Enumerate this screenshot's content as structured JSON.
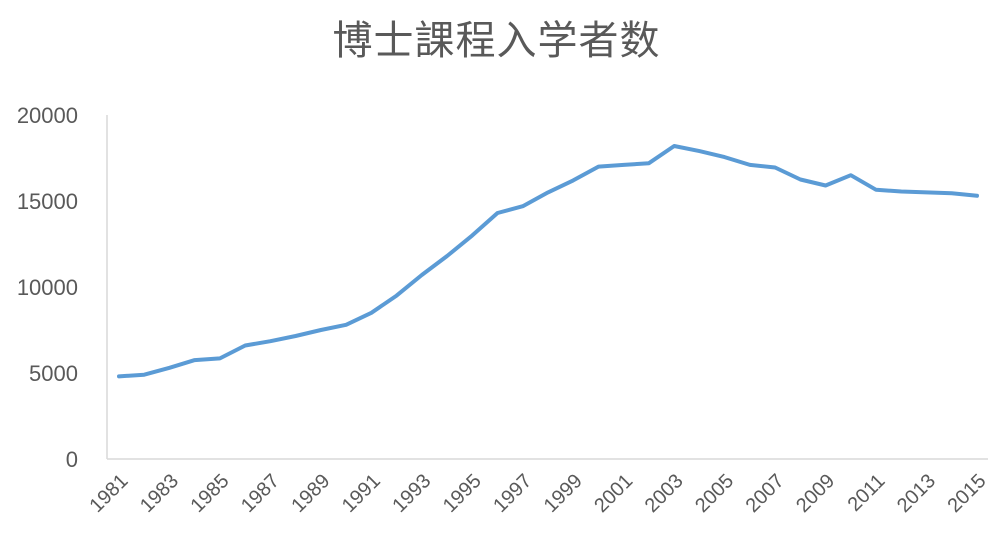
{
  "chart_data": {
    "type": "line",
    "title": "博士課程入学者数",
    "xlabel": "",
    "ylabel": "",
    "ylim": [
      0,
      20000
    ],
    "yticks": [
      0,
      5000,
      10000,
      15000,
      20000
    ],
    "x": [
      1981,
      1982,
      1983,
      1984,
      1985,
      1986,
      1987,
      1988,
      1989,
      1990,
      1991,
      1992,
      1993,
      1994,
      1995,
      1996,
      1997,
      1998,
      1999,
      2000,
      2001,
      2002,
      2003,
      2004,
      2005,
      2006,
      2007,
      2008,
      2009,
      2010,
      2011,
      2012,
      2013,
      2014,
      2015
    ],
    "xtick_labels": [
      "1981",
      "1983",
      "1985",
      "1987",
      "1989",
      "1991",
      "1993",
      "1995",
      "1997",
      "1999",
      "2001",
      "2003",
      "2005",
      "2007",
      "2009",
      "2011",
      "2013",
      "2015"
    ],
    "series": [
      {
        "color": "#5b9bd5",
        "values": [
          4800,
          4900,
          5300,
          5750,
          5850,
          6600,
          6850,
          7150,
          7500,
          7800,
          8500,
          9500,
          10700,
          11800,
          13000,
          14300,
          14700,
          15500,
          16200,
          17000,
          17100,
          17200,
          18200,
          17900,
          17550,
          17100,
          16950,
          16250,
          15900,
          16500,
          15650,
          15550,
          15500,
          15450,
          15300
        ]
      }
    ],
    "grid": false,
    "legend": "none"
  }
}
